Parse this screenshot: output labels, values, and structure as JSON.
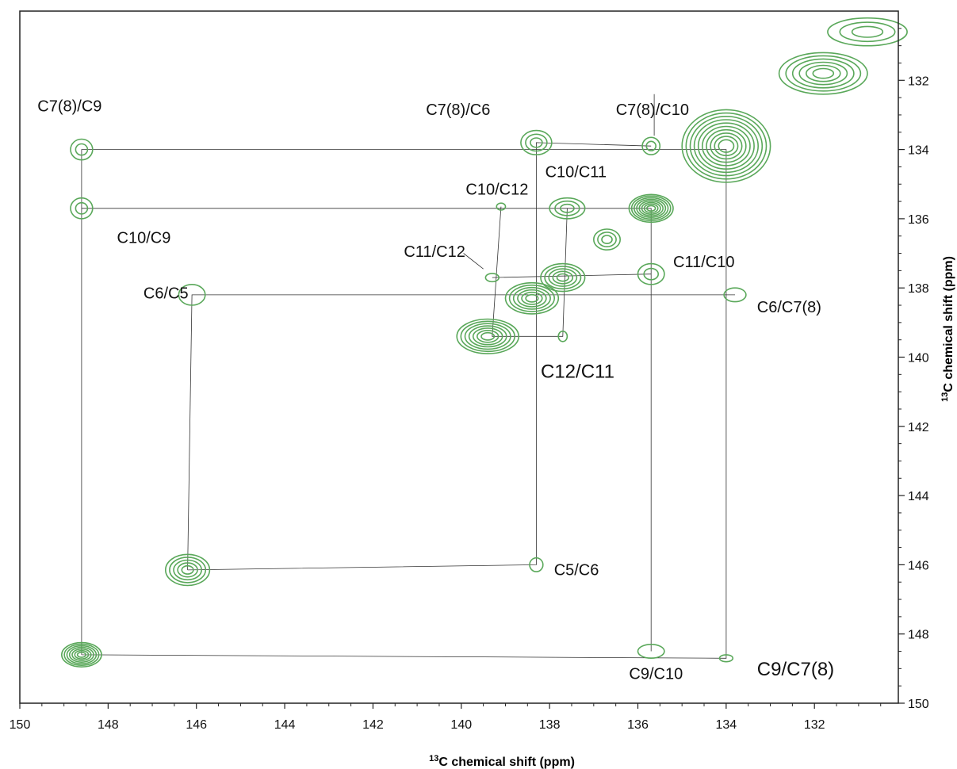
{
  "chart_data": {
    "type": "contour",
    "title": "",
    "xlabel": {
      "superscript": "13",
      "text": "C chemical shift (ppm)"
    },
    "ylabel": {
      "superscript": "13",
      "text": "C chemical shift (ppm)"
    },
    "xlim": [
      150,
      130.1
    ],
    "ylim": [
      130,
      150
    ],
    "x_reversed": true,
    "y_increases_downward": true,
    "x_ticks": [
      "150",
      "148",
      "146",
      "144",
      "142",
      "140",
      "138",
      "136",
      "134",
      "132"
    ],
    "y_ticks": [
      "132",
      "134",
      "136",
      "138",
      "140",
      "142",
      "144",
      "146",
      "148",
      "150"
    ],
    "grid": false,
    "contour_color": "#5aa85a",
    "peaks": [
      {
        "x": 148.6,
        "y": 148.6,
        "rx": 0.45,
        "ry": 0.35,
        "levels": 7
      },
      {
        "x": 146.2,
        "y": 146.15,
        "rx": 0.5,
        "ry": 0.45,
        "levels": 5
      },
      {
        "x": 134.0,
        "y": 133.9,
        "rx": 1.0,
        "ry": 1.05,
        "levels": 10
      },
      {
        "x": 135.7,
        "y": 135.7,
        "rx": 0.5,
        "ry": 0.4,
        "levels": 8
      },
      {
        "x": 137.7,
        "y": 137.7,
        "rx": 0.5,
        "ry": 0.4,
        "levels": 5
      },
      {
        "x": 138.4,
        "y": 138.3,
        "rx": 0.6,
        "ry": 0.45,
        "levels": 6
      },
      {
        "x": 139.4,
        "y": 139.4,
        "rx": 0.7,
        "ry": 0.5,
        "levels": 7
      },
      {
        "x": 136.7,
        "y": 136.6,
        "rx": 0.3,
        "ry": 0.3,
        "levels": 3
      },
      {
        "x": 131.8,
        "y": 131.8,
        "rx": 1.0,
        "ry": 0.6,
        "levels": 6
      },
      {
        "x": 130.8,
        "y": 130.6,
        "rx": 0.9,
        "ry": 0.4,
        "levels": 3
      },
      {
        "x": 148.6,
        "y": 134.0,
        "rx": 0.25,
        "ry": 0.3,
        "levels": 2
      },
      {
        "x": 148.6,
        "y": 135.7,
        "rx": 0.25,
        "ry": 0.3,
        "levels": 2
      },
      {
        "x": 138.3,
        "y": 133.8,
        "rx": 0.35,
        "ry": 0.35,
        "levels": 3
      },
      {
        "x": 135.7,
        "y": 133.9,
        "rx": 0.2,
        "ry": 0.25,
        "levels": 2
      },
      {
        "x": 137.6,
        "y": 135.7,
        "rx": 0.4,
        "ry": 0.3,
        "levels": 3
      },
      {
        "x": 139.1,
        "y": 135.65,
        "rx": 0.1,
        "ry": 0.1,
        "levels": 1
      },
      {
        "x": 139.3,
        "y": 137.7,
        "rx": 0.15,
        "ry": 0.12,
        "levels": 1
      },
      {
        "x": 135.7,
        "y": 137.6,
        "rx": 0.3,
        "ry": 0.3,
        "levels": 2
      },
      {
        "x": 146.1,
        "y": 138.2,
        "rx": 0.3,
        "ry": 0.3,
        "levels": 1
      },
      {
        "x": 133.8,
        "y": 138.2,
        "rx": 0.25,
        "ry": 0.2,
        "levels": 1
      },
      {
        "x": 137.7,
        "y": 139.4,
        "rx": 0.1,
        "ry": 0.15,
        "levels": 1
      },
      {
        "x": 138.3,
        "y": 146.0,
        "rx": 0.15,
        "ry": 0.2,
        "levels": 1
      },
      {
        "x": 135.7,
        "y": 148.5,
        "rx": 0.3,
        "ry": 0.2,
        "levels": 1
      },
      {
        "x": 134.0,
        "y": 148.7,
        "rx": 0.15,
        "ry": 0.1,
        "levels": 1
      }
    ],
    "connections": [
      [
        [
          148.6,
          148.6
        ],
        [
          148.6,
          134.0
        ],
        [
          134.0,
          134.0
        ],
        [
          134.0,
          148.7
        ],
        [
          148.6,
          148.6
        ]
      ],
      [
        [
          148.6,
          135.7
        ],
        [
          135.7,
          135.7
        ],
        [
          135.7,
          148.5
        ]
      ],
      [
        [
          146.2,
          146.15
        ],
        [
          146.1,
          138.2
        ],
        [
          133.8,
          138.2
        ]
      ],
      [
        [
          146.2,
          146.15
        ],
        [
          138.3,
          146.0
        ],
        [
          138.3,
          133.8
        ],
        [
          135.7,
          133.9
        ]
      ],
      [
        [
          139.1,
          135.65
        ],
        [
          139.3,
          139.4
        ],
        [
          137.7,
          139.4
        ],
        [
          137.6,
          135.7
        ]
      ],
      [
        [
          139.3,
          137.7
        ],
        [
          135.7,
          137.6
        ]
      ]
    ],
    "annotations": [
      {
        "text": "C7(8)/C9",
        "x": 149.6,
        "y": 132.9,
        "size": "normal"
      },
      {
        "text": "C10/C9",
        "x": 147.8,
        "y": 136.7,
        "size": "normal"
      },
      {
        "text": "C6/C5",
        "x": 147.2,
        "y": 138.3,
        "size": "normal"
      },
      {
        "text": "C7(8)/C6",
        "x": 140.8,
        "y": 133.0,
        "size": "normal"
      },
      {
        "text": "C7(8)/C10",
        "x": 136.5,
        "y": 133.0,
        "size": "normal"
      },
      {
        "text": "C10/C12",
        "x": 139.9,
        "y": 135.3,
        "size": "normal"
      },
      {
        "text": "C10/C11",
        "x": 138.1,
        "y": 134.8,
        "size": "normal"
      },
      {
        "text": "C11/C12",
        "x": 141.3,
        "y": 137.1,
        "size": "normal"
      },
      {
        "text": "C11/C10",
        "x": 135.2,
        "y": 137.4,
        "size": "normal"
      },
      {
        "text": "C6/C7(8)",
        "x": 133.3,
        "y": 138.7,
        "size": "normal"
      },
      {
        "text": "C12/C11",
        "x": 138.2,
        "y": 140.6,
        "size": "big"
      },
      {
        "text": "C5/C6",
        "x": 137.9,
        "y": 146.3,
        "size": "normal"
      },
      {
        "text": "C9/C10",
        "x": 136.2,
        "y": 149.3,
        "size": "normal"
      },
      {
        "text": "C9/C7(8)",
        "x": 133.3,
        "y": 149.2,
        "size": "big"
      }
    ],
    "leaders": [
      [
        [
          135.63,
          132.4
        ],
        [
          135.63,
          133.6
        ]
      ],
      [
        [
          139.95,
          137.0
        ],
        [
          139.5,
          137.45
        ]
      ]
    ]
  }
}
